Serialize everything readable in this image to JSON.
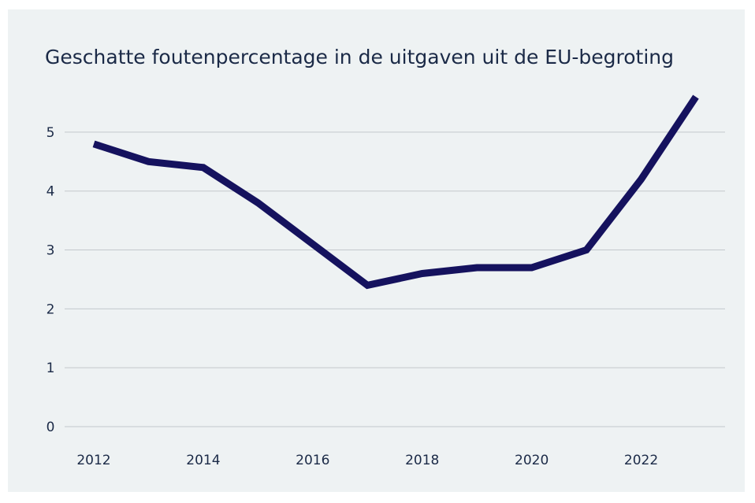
{
  "chart_data": {
    "type": "line",
    "title": "Geschatte foutenpercentage in de uitgaven uit de EU-begroting",
    "x": [
      2012,
      2013,
      2014,
      2015,
      2016,
      2017,
      2018,
      2019,
      2020,
      2021,
      2022,
      2023
    ],
    "series": [
      {
        "color": "#15125e",
        "values": [
          4.8,
          4.5,
          4.4,
          3.8,
          3.1,
          2.4,
          2.6,
          2.7,
          2.7,
          3.0,
          4.2,
          5.6
        ]
      }
    ],
    "xlim": [
      2012,
      2023
    ],
    "xticks": [
      2012,
      2014,
      2016,
      2018,
      2020,
      2022
    ],
    "ylim": [
      0,
      5.6
    ],
    "yticks": [
      0,
      1,
      2,
      3,
      4,
      5
    ],
    "grid": true
  }
}
